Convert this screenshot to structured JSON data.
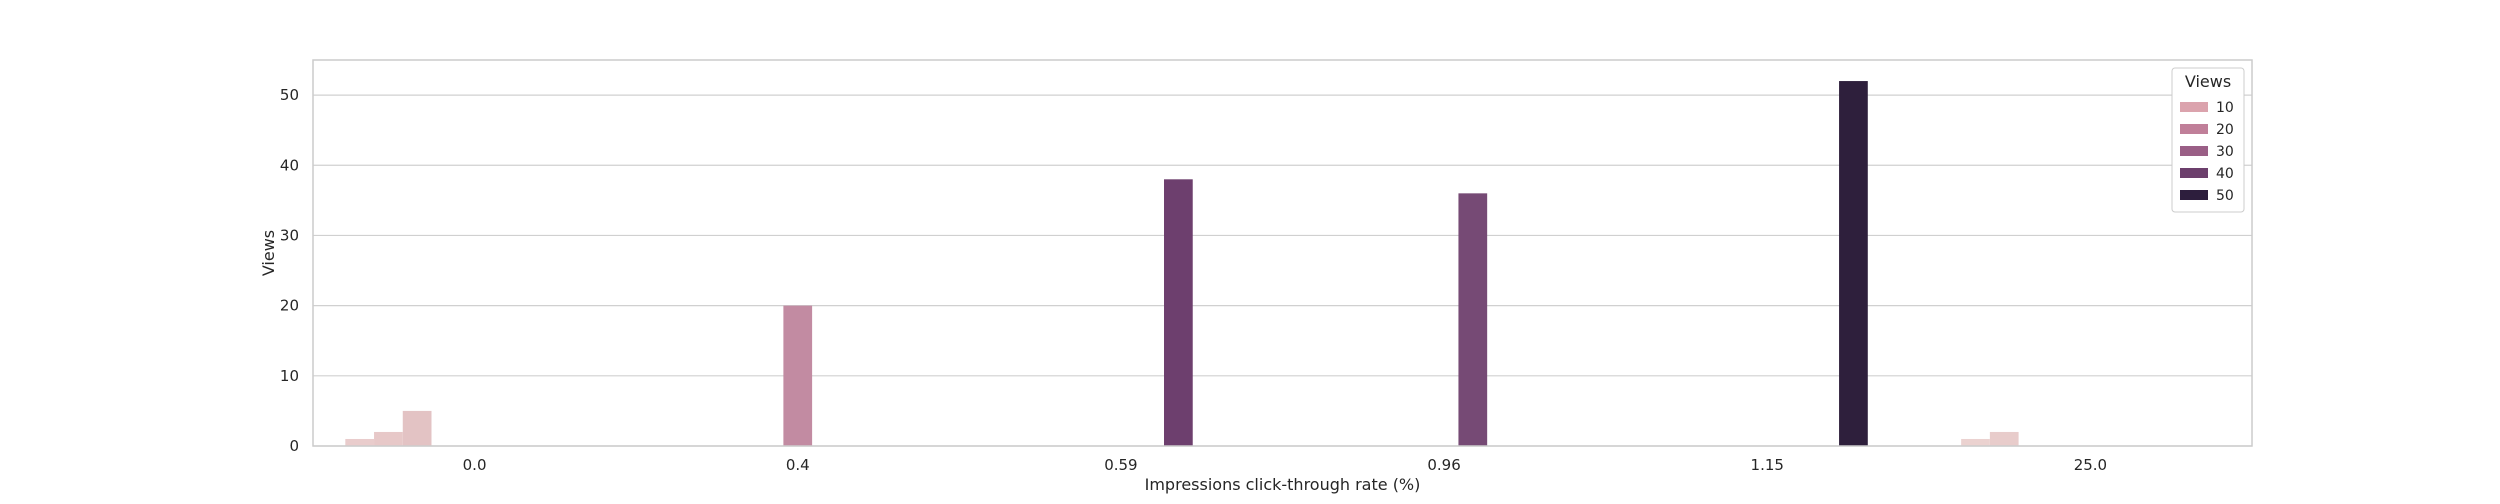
{
  "chart_data": {
    "type": "bar",
    "title": "",
    "xlabel": "Impressions click-through rate (%)",
    "ylabel": "Views",
    "categories": [
      "0.0",
      "0.4",
      "0.59",
      "0.96",
      "1.15",
      "25.0"
    ],
    "ylim": [
      0,
      55
    ],
    "yticks": [
      "0",
      "10",
      "20",
      "30",
      "40",
      "50"
    ],
    "grid": true,
    "legend": {
      "title": "Views",
      "placement": "top-right",
      "entries": [
        {
          "label": "10",
          "color": "#dba3ad"
        },
        {
          "label": "20",
          "color": "#c07f99"
        },
        {
          "label": "30",
          "color": "#9a5f86"
        },
        {
          "label": "40",
          "color": "#6c3f6c"
        },
        {
          "label": "50",
          "color": "#2d1e3d"
        }
      ]
    },
    "hue_slots": 9,
    "bars": [
      {
        "category": "0.0",
        "slot": 0,
        "value": 1,
        "color": "#e9cccc"
      },
      {
        "category": "0.0",
        "slot": 1,
        "value": 2,
        "color": "#e7c8c8"
      },
      {
        "category": "0.0",
        "slot": 2,
        "value": 5,
        "color": "#e3c3c4"
      },
      {
        "category": "0.4",
        "slot": 4,
        "value": 20,
        "color": "#c28ba2"
      },
      {
        "category": "0.59",
        "slot": 6,
        "value": 38,
        "color": "#6d3f6e"
      },
      {
        "category": "0.96",
        "slot": 5,
        "value": 36,
        "color": "#764a75"
      },
      {
        "category": "1.15",
        "slot": 7,
        "value": 52,
        "color": "#2e1f3c"
      },
      {
        "category": "25.0",
        "slot": 0,
        "value": 1,
        "color": "#ebd2d0"
      },
      {
        "category": "25.0",
        "slot": 1,
        "value": 2,
        "color": "#e8cccb"
      }
    ]
  }
}
